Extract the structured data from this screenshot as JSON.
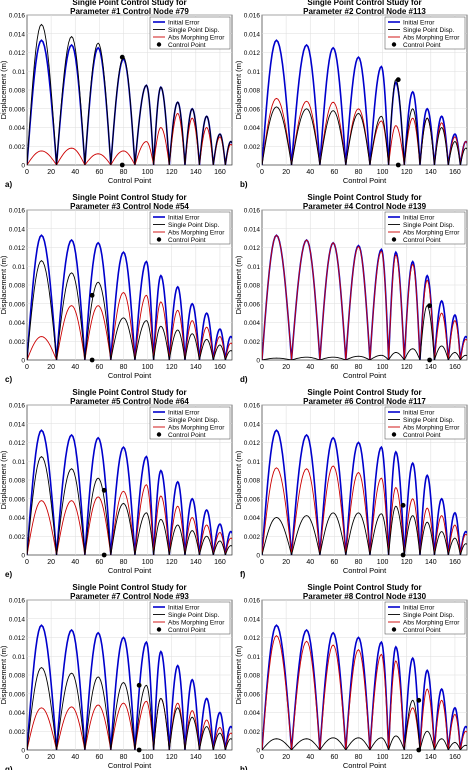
{
  "figure": {
    "series_names": [
      "Initial Error",
      "Single Point Disp.",
      "Abs Morphing Error",
      "Control Point"
    ],
    "colors": {
      "initial": "#0000cc",
      "single": "#000000",
      "abs": "#cc0000",
      "point": "#000000"
    },
    "xlabel": "Control Point",
    "ylabel": "Displacement (m)",
    "xticks": [
      0,
      20,
      40,
      60,
      80,
      100,
      120,
      140,
      160
    ],
    "yticks": [
      "0",
      "0.002",
      "0.004",
      "0.006",
      "0.008",
      "0.01",
      "0.012",
      "0.014",
      "0.016"
    ]
  },
  "chart_data": [
    {
      "type": "line",
      "panel_letter": "a)",
      "title_line1": "Single Point Control Study for",
      "title_line2": "Parameter #1 Control Node #79",
      "xlim": [
        0,
        170
      ],
      "ylim": [
        0,
        0.016
      ],
      "grid": true,
      "legend": "top-right",
      "peak_x": [
        12,
        37,
        59,
        80,
        99,
        111,
        125,
        137,
        149,
        160,
        169
      ],
      "initial_peaks": [
        0.0133,
        0.0128,
        0.0125,
        0.0113,
        0.0085,
        0.0083,
        0.0067,
        0.006,
        0.0052,
        0.0033,
        0.0025
      ],
      "single_peaks": [
        0.015,
        0.0137,
        0.013,
        0.0115,
        0.0085,
        0.0083,
        0.0067,
        0.006,
        0.0052,
        0.0033,
        0.0025
      ],
      "abs_peaks": [
        0.0015,
        0.0018,
        0.0012,
        0.0015,
        0.0025,
        0.004,
        0.0055,
        0.005,
        0.004,
        0.003,
        0.0022
      ],
      "control_point": {
        "x": 79,
        "y_top": 0.0115,
        "y_base": 0.0
      }
    },
    {
      "type": "line",
      "panel_letter": "b)",
      "title_line1": "Single Point Control Study for",
      "title_line2": "Parameter #2 Control Node #113",
      "xlim": [
        0,
        170
      ],
      "ylim": [
        0,
        0.016
      ],
      "grid": true,
      "legend": "top-right",
      "peak_x": [
        12,
        37,
        59,
        80,
        99,
        111,
        125,
        137,
        149,
        160,
        169
      ],
      "initial_peaks": [
        0.0133,
        0.0128,
        0.0125,
        0.0115,
        0.0105,
        0.0088,
        0.0078,
        0.006,
        0.0052,
        0.0033,
        0.0025
      ],
      "single_peaks": [
        0.0062,
        0.006,
        0.0058,
        0.0055,
        0.0052,
        0.0091,
        0.006,
        0.005,
        0.004,
        0.0025,
        0.0018
      ],
      "abs_peaks": [
        0.0071,
        0.0068,
        0.0067,
        0.006,
        0.0047,
        0.0042,
        0.005,
        0.005,
        0.0045,
        0.003,
        0.0025
      ],
      "control_point": {
        "x": 113,
        "y_top": 0.0091,
        "y_base": 0.0
      }
    },
    {
      "type": "line",
      "panel_letter": "c)",
      "title_line1": "Single Point Control Study for",
      "title_line2": "Parameter #3 Control Node #54",
      "xlim": [
        0,
        170
      ],
      "ylim": [
        0,
        0.016
      ],
      "grid": true,
      "legend": "top-right",
      "peak_x": [
        12,
        37,
        59,
        80,
        99,
        111,
        125,
        137,
        149,
        160,
        169
      ],
      "initial_peaks": [
        0.0133,
        0.0128,
        0.0125,
        0.0115,
        0.0105,
        0.009,
        0.0078,
        0.006,
        0.005,
        0.0033,
        0.0025
      ],
      "single_peaks": [
        0.0106,
        0.0093,
        0.0083,
        0.0045,
        0.0042,
        0.0036,
        0.0032,
        0.0028,
        0.0022,
        0.0016,
        0.001
      ],
      "abs_peaks": [
        0.0025,
        0.0058,
        0.0058,
        0.0072,
        0.0069,
        0.0062,
        0.0053,
        0.0042,
        0.0035,
        0.0025,
        0.0018
      ],
      "control_point": {
        "x": 54,
        "y_top": 0.0069,
        "y_base": 0.0
      }
    },
    {
      "type": "line",
      "panel_letter": "d)",
      "title_line1": "Single Point Control Study for",
      "title_line2": "Parameter #4 Control Node #139",
      "xlim": [
        0,
        170
      ],
      "ylim": [
        0,
        0.016
      ],
      "grid": true,
      "legend": "top-right",
      "peak_x": [
        12,
        37,
        59,
        80,
        99,
        111,
        125,
        137,
        149,
        160,
        169
      ],
      "initial_peaks": [
        0.0133,
        0.0128,
        0.0125,
        0.0122,
        0.0118,
        0.0115,
        0.0105,
        0.009,
        0.0063,
        0.0048,
        0.0025
      ],
      "single_peaks": [
        0.0002,
        0.0003,
        0.0003,
        0.0004,
        0.0005,
        0.0008,
        0.0012,
        0.0058,
        0.0015,
        0.0008,
        0.0005
      ],
      "abs_peaks": [
        0.0133,
        0.0128,
        0.0125,
        0.0121,
        0.0116,
        0.0112,
        0.0102,
        0.0085,
        0.005,
        0.0042,
        0.0022
      ],
      "control_point": {
        "x": 139,
        "y_top": 0.0058,
        "y_base": 0.0
      }
    },
    {
      "type": "line",
      "panel_letter": "e)",
      "title_line1": "Single Point Control Study for",
      "title_line2": "Parameter #5 Control Node #64",
      "xlim": [
        0,
        170
      ],
      "ylim": [
        0,
        0.016
      ],
      "grid": true,
      "legend": "top-right",
      "peak_x": [
        12,
        37,
        59,
        80,
        99,
        111,
        125,
        137,
        149,
        160,
        169
      ],
      "initial_peaks": [
        0.0133,
        0.0128,
        0.0125,
        0.0115,
        0.0105,
        0.009,
        0.0078,
        0.006,
        0.0048,
        0.0033,
        0.0025
      ],
      "single_peaks": [
        0.0105,
        0.0092,
        0.0082,
        0.0055,
        0.0045,
        0.0038,
        0.0032,
        0.0026,
        0.002,
        0.0015,
        0.001
      ],
      "abs_peaks": [
        0.0058,
        0.0058,
        0.0062,
        0.0068,
        0.0075,
        0.0063,
        0.0052,
        0.004,
        0.0032,
        0.0024,
        0.0018
      ],
      "control_point": {
        "x": 64,
        "y_top": 0.0069,
        "y_base": 0.0
      }
    },
    {
      "type": "line",
      "panel_letter": "f)",
      "title_line1": "Single Point Control Study for",
      "title_line2": "Parameter #6 Control Node #117",
      "xlim": [
        0,
        170
      ],
      "ylim": [
        0,
        0.016
      ],
      "grid": true,
      "legend": "top-right",
      "peak_x": [
        12,
        37,
        59,
        80,
        99,
        111,
        125,
        137,
        149,
        160,
        169
      ],
      "initial_peaks": [
        0.0133,
        0.0128,
        0.0125,
        0.012,
        0.0115,
        0.011,
        0.0098,
        0.0085,
        0.006,
        0.0045,
        0.0025
      ],
      "single_peaks": [
        0.004,
        0.0042,
        0.0045,
        0.0045,
        0.0044,
        0.0052,
        0.0042,
        0.0035,
        0.0025,
        0.0018,
        0.0012
      ],
      "abs_peaks": [
        0.0093,
        0.0092,
        0.0095,
        0.0088,
        0.0082,
        0.0072,
        0.006,
        0.005,
        0.0042,
        0.0032,
        0.0022
      ],
      "control_point": {
        "x": 117,
        "y_top": 0.0053,
        "y_base": 0.0
      }
    },
    {
      "type": "line",
      "panel_letter": "g)",
      "title_line1": "Single Point Control Study for",
      "title_line2": "Parameter #7 Control Node #93",
      "xlim": [
        0,
        170
      ],
      "ylim": [
        0,
        0.016
      ],
      "grid": true,
      "legend": "top-right",
      "peak_x": [
        12,
        37,
        59,
        80,
        99,
        111,
        125,
        137,
        149,
        160,
        169
      ],
      "initial_peaks": [
        0.0133,
        0.0128,
        0.0125,
        0.012,
        0.0115,
        0.0105,
        0.009,
        0.0075,
        0.0055,
        0.004,
        0.0025
      ],
      "single_peaks": [
        0.0088,
        0.0082,
        0.0078,
        0.0072,
        0.0069,
        0.0055,
        0.0045,
        0.0035,
        0.0025,
        0.0018,
        0.0012
      ],
      "abs_peaks": [
        0.0045,
        0.0046,
        0.0048,
        0.005,
        0.0052,
        0.0055,
        0.005,
        0.0042,
        0.0032,
        0.0024,
        0.0018
      ],
      "control_point": {
        "x": 93,
        "y_top": 0.0069,
        "y_base": 0.0
      }
    },
    {
      "type": "line",
      "panel_letter": "h)",
      "title_line1": "Single Point Control Study for",
      "title_line2": "Parameter #8 Control Node #130",
      "xlim": [
        0,
        170
      ],
      "ylim": [
        0,
        0.016
      ],
      "grid": true,
      "legend": "top-right",
      "peak_x": [
        12,
        37,
        59,
        80,
        99,
        111,
        125,
        137,
        149,
        160,
        169
      ],
      "initial_peaks": [
        0.0133,
        0.0128,
        0.0125,
        0.012,
        0.0115,
        0.011,
        0.0098,
        0.0085,
        0.0065,
        0.0045,
        0.0025
      ],
      "single_peaks": [
        0.0012,
        0.0012,
        0.0013,
        0.0013,
        0.0013,
        0.0015,
        0.0053,
        0.002,
        0.0012,
        0.0008,
        0.0005
      ],
      "abs_peaks": [
        0.0122,
        0.0116,
        0.0112,
        0.0107,
        0.0102,
        0.0095,
        0.0045,
        0.0065,
        0.0053,
        0.0038,
        0.002
      ],
      "control_point": {
        "x": 130,
        "y_top": 0.0053,
        "y_base": 0.0
      }
    }
  ]
}
